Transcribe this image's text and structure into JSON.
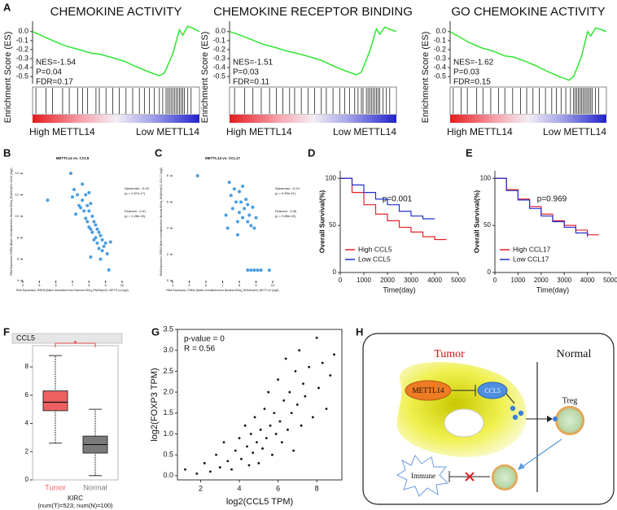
{
  "panel_labels": [
    "A",
    "B",
    "C",
    "D",
    "E",
    "F",
    "G",
    "H"
  ],
  "chart_data": [
    {
      "type": "line",
      "title": "CHEMOKINE ACTIVITY",
      "y_label": "Enrichment Score (ES)",
      "x_labels": [
        "High METTL14",
        "Low METTL14"
      ],
      "color": "#2ee62e",
      "annotations": [
        "NES=-1.54",
        "P=0.04",
        "FDR=0.17"
      ],
      "xlim": [
        0,
        100
      ],
      "ylim": [
        -0.58,
        0.08
      ],
      "yticks": [
        {
          "value": 0,
          "label": "0.0"
        },
        -0.1,
        -0.2,
        -0.3,
        -0.4,
        -0.5
      ],
      "x": [
        0,
        5,
        12,
        20,
        28,
        35,
        40,
        48,
        55,
        62,
        70,
        76,
        79,
        84,
        88,
        90,
        93,
        97,
        100
      ],
      "values": [
        0,
        -0.04,
        -0.1,
        -0.16,
        -0.2,
        -0.24,
        -0.25,
        -0.29,
        -0.33,
        -0.39,
        -0.45,
        -0.49,
        -0.46,
        -0.25,
        0.02,
        -0.04,
        0.06,
        0.03,
        0
      ],
      "hits": [
        2,
        8,
        12,
        18,
        22,
        27,
        30,
        33,
        38,
        40,
        44,
        48,
        52,
        56,
        60,
        64,
        67,
        70,
        73,
        76,
        78,
        80,
        81,
        82,
        83,
        84,
        85,
        86,
        87,
        88,
        89,
        90,
        91,
        93,
        95
      ]
    },
    {
      "type": "line",
      "title": "CHEMOKINE RECEPTOR BINDING",
      "y_label": "Enrichment Score (ES)",
      "x_labels": [
        "High METTL14",
        "Low METTL14"
      ],
      "color": "#2ee62e",
      "annotations": [
        "NES=-1.51",
        "P=0.03",
        "FDR=0.11"
      ],
      "xlim": [
        0,
        100
      ],
      "ylim": [
        -0.58,
        0.08
      ],
      "yticks": [
        {
          "value": 0,
          "label": "0.0"
        },
        -0.1,
        -0.2,
        -0.3,
        -0.4,
        -0.5
      ],
      "x": [
        0,
        5,
        12,
        20,
        28,
        35,
        40,
        48,
        55,
        62,
        70,
        76,
        79,
        84,
        88,
        90,
        93,
        97,
        100
      ],
      "values": [
        0,
        -0.03,
        -0.08,
        -0.14,
        -0.18,
        -0.22,
        -0.24,
        -0.28,
        -0.32,
        -0.38,
        -0.44,
        -0.48,
        -0.45,
        -0.22,
        0.03,
        -0.03,
        0.05,
        0.02,
        0
      ],
      "hits": [
        3,
        9,
        14,
        19,
        24,
        28,
        32,
        36,
        39,
        43,
        47,
        51,
        55,
        58,
        62,
        66,
        69,
        72,
        75,
        77,
        79,
        80,
        82,
        83,
        84,
        85,
        86,
        87,
        88,
        89,
        90,
        92,
        94,
        96
      ]
    },
    {
      "type": "line",
      "title": "GO CHEMOKINE ACTIVITY",
      "y_label": "Enrichment Score (ES)",
      "x_labels": [
        "High METTL14",
        "Low METTL14"
      ],
      "color": "#2ee62e",
      "annotations": [
        "NES=-1.62",
        "P=0.03",
        "FDR=0.15"
      ],
      "xlim": [
        0,
        100
      ],
      "ylim": [
        -0.58,
        0.08
      ],
      "yticks": [
        {
          "value": 0,
          "label": "0.0"
        },
        -0.1,
        -0.2,
        -0.3,
        -0.4,
        -0.5
      ],
      "x": [
        0,
        5,
        12,
        20,
        28,
        35,
        40,
        48,
        55,
        62,
        70,
        76,
        79,
        84,
        88,
        90,
        93,
        97,
        100
      ],
      "values": [
        0,
        -0.05,
        -0.12,
        -0.18,
        -0.22,
        -0.27,
        -0.28,
        -0.33,
        -0.38,
        -0.44,
        -0.5,
        -0.54,
        -0.5,
        -0.28,
        0,
        -0.05,
        0.04,
        0.02,
        0
      ],
      "hits": [
        2,
        7,
        11,
        17,
        21,
        26,
        31,
        35,
        40,
        45,
        49,
        53,
        57,
        61,
        65,
        68,
        71,
        74,
        77,
        79,
        80,
        81,
        82,
        83,
        84,
        85,
        86,
        87,
        88,
        89,
        90,
        91,
        93,
        95
      ]
    },
    {
      "type": "scatter",
      "title": "METTL14 vs. CCL5",
      "color": "#4a9de0",
      "x_label": "RNA Expression, RSEM (Batch normalized from Illumina HiSeq_RNASeqV2): METTL14 (log2)",
      "y_label": "RNA Expression, RSEM (Batch normalized from Illumina HiSeq_RNASeqV2): CCL5 (log2)",
      "annotations": [
        "Spearman: -0.43",
        "(p = 1.67e-17)",
        "Pearson: -0.41",
        "(p = 1.28e-15)"
      ],
      "xlim": [
        4,
        10
      ],
      "xticks": [
        4,
        5,
        6,
        7,
        8,
        9,
        10
      ],
      "ylim": [
        4,
        15
      ],
      "yticks": [
        4,
        6,
        8,
        10,
        12,
        14
      ],
      "x": [
        5.5,
        6.9,
        7.1,
        7.3,
        7.4,
        7.5,
        7.6,
        7.6,
        7.7,
        7.8,
        7.8,
        7.9,
        7.9,
        8.0,
        8.0,
        8.1,
        8.1,
        8.2,
        8.2,
        8.3,
        8.3,
        8.4,
        8.4,
        8.5,
        8.5,
        8.6,
        8.6,
        8.7,
        8.8,
        8.8,
        8.9,
        9.0,
        9.1,
        9.2,
        7.2,
        7.0,
        8.0,
        8.7,
        9.3,
        8.1
      ],
      "values": [
        11.5,
        14,
        12.5,
        12,
        11,
        10.8,
        13,
        11.5,
        10.5,
        12,
        9.8,
        11,
        9.5,
        10.5,
        9,
        11.2,
        8.8,
        10,
        8.5,
        9.5,
        7.8,
        9.2,
        8,
        8.8,
        7.5,
        8.5,
        7,
        8.2,
        7.8,
        6.8,
        7.2,
        7.5,
        6.5,
        5,
        10.2,
        11.8,
        12.2,
        6,
        7.6,
        6.2
      ]
    },
    {
      "type": "scatter",
      "title": "METTL14 vs. CCL17",
      "color": "#4a9de0",
      "x_label": "RNA Expression, RSEM (Batch normalized from Illumina HiSeq_RNASeqV2): METTL14 (log2)",
      "y_label": "RNA Expression, RSEM (Batch normalized from Illumina HiSeq_RNASeqV2): CCL17 (log2)",
      "annotations": [
        "Spearman: -0.24",
        "(p = 6.59e-11)",
        "Pearson: -0.36",
        "(p = 3.85e-10)"
      ],
      "xlim": [
        4,
        10
      ],
      "xticks": [
        4,
        5,
        6,
        7,
        8,
        9,
        10
      ],
      "ylim": [
        0,
        9
      ],
      "yticks": [
        0,
        2,
        4,
        6,
        8
      ],
      "x": [
        5.5,
        7.2,
        7.3,
        7.5,
        7.6,
        7.7,
        7.8,
        7.9,
        8.0,
        8.0,
        8.1,
        8.2,
        8.2,
        8.3,
        8.4,
        8.5,
        8.5,
        8.6,
        8.7,
        8.8,
        8.9,
        9.0,
        7.4,
        7.9,
        8.5,
        8.7,
        8.9,
        9.1,
        9.3,
        9.8
      ],
      "values": [
        8,
        5,
        4,
        6.5,
        5.5,
        7,
        6,
        4.5,
        6.8,
        5.2,
        6,
        4.8,
        7.2,
        5.5,
        6.2,
        4.5,
        5.8,
        5,
        4.2,
        5.6,
        4,
        4.8,
        7.5,
        3.5,
        0.8,
        0.8,
        0.8,
        0.8,
        0.8,
        0.8
      ]
    },
    {
      "type": "step",
      "x_label": "Time(day)",
      "y_label": "Overall Survival(%)",
      "annotations": [
        "p=0.001"
      ],
      "xlim": [
        0,
        5000
      ],
      "xticks": [
        0,
        1000,
        2000,
        3000,
        4000,
        5000
      ],
      "ylim": [
        0,
        108
      ],
      "yticks": [
        0,
        50,
        100
      ],
      "series": [
        {
          "name": "High CCL5",
          "color": "#e8202a",
          "x": [
            0,
            500,
            1000,
            1500,
            2000,
            2500,
            3000,
            3500,
            4000,
            4500
          ],
          "values": [
            100,
            85,
            72,
            62,
            55,
            48,
            43,
            38,
            35,
            35
          ]
        },
        {
          "name": "Low CCL5",
          "color": "#2030d0",
          "x": [
            0,
            500,
            1000,
            1500,
            2000,
            2500,
            3000,
            3500,
            4000
          ],
          "values": [
            100,
            93,
            85,
            78,
            72,
            65,
            60,
            57,
            57
          ]
        }
      ]
    },
    {
      "type": "step",
      "x_label": "Time(day)",
      "y_label": "Overall Survival(%)",
      "annotations": [
        "p=0.969"
      ],
      "xlim": [
        0,
        5000
      ],
      "xticks": [
        0,
        1000,
        2000,
        3000,
        4000,
        5000
      ],
      "ylim": [
        0,
        108
      ],
      "yticks": [
        0,
        50,
        100
      ],
      "series": [
        {
          "name": "High CCL17",
          "color": "#e8202a",
          "x": [
            0,
            500,
            1000,
            1500,
            2000,
            2500,
            3000,
            3500,
            4000,
            4500
          ],
          "values": [
            100,
            88,
            78,
            70,
            62,
            55,
            50,
            45,
            40,
            40
          ]
        },
        {
          "name": "Low CCL17",
          "color": "#2030d0",
          "x": [
            0,
            500,
            1000,
            1500,
            2000,
            2500,
            3000,
            3500,
            4000
          ],
          "values": [
            100,
            87,
            77,
            68,
            60,
            54,
            48,
            42,
            38
          ]
        }
      ]
    },
    {
      "type": "box",
      "title": "CCL5",
      "x_label": "KIRC",
      "subtitle": "(num(T)=523; num(N)=100)",
      "annotations": [
        "*"
      ],
      "ylim": [
        0,
        9.5
      ],
      "yticks": [
        0,
        2,
        4,
        6,
        8
      ],
      "boxes": [
        {
          "name": "Tumor",
          "color": "#f06060",
          "min": 2.6,
          "q1": 4.9,
          "median": 5.5,
          "q3": 6.3,
          "max": 8.8
        },
        {
          "name": "Normal",
          "color": "#7a7a7a",
          "min": 0.3,
          "q1": 1.9,
          "median": 2.5,
          "q3": 3.1,
          "max": 5.0
        }
      ]
    },
    {
      "type": "scatter",
      "x_label": "log2(CCL5 TPM)",
      "y_label": "log2(FOXP3 TPM)",
      "color": "#111111",
      "annotations": [
        "p-value = 0",
        "R = 0.56"
      ],
      "xlim": [
        0.8,
        9.3
      ],
      "xticks": [
        2,
        4,
        6,
        8
      ],
      "ylim": [
        -0.1,
        3.5
      ],
      "yticks": [
        {
          "value": 0,
          "label": "0.0"
        },
        0.5,
        {
          "value": 1,
          "label": "1.0"
        },
        1.5,
        {
          "value": 2,
          "label": "2.0"
        },
        2.5,
        {
          "value": 3,
          "label": "3.0"
        },
        3.5
      ],
      "x": [
        1.2,
        1.8,
        2.2,
        2.5,
        2.8,
        3.0,
        3.2,
        3.4,
        3.6,
        3.8,
        4.0,
        4.1,
        4.3,
        4.4,
        4.5,
        4.6,
        4.7,
        4.8,
        4.9,
        5.0,
        5.1,
        5.2,
        5.3,
        5.4,
        5.5,
        5.6,
        5.7,
        5.8,
        5.9,
        6.0,
        6.1,
        6.2,
        6.3,
        6.4,
        6.5,
        6.6,
        6.7,
        6.8,
        6.9,
        7.0,
        7.1,
        7.2,
        7.3,
        7.4,
        7.6,
        7.8,
        8.0,
        8.1,
        8.3,
        8.5,
        8.7,
        8.9
      ],
      "values": [
        0.15,
        0.05,
        0.3,
        0.1,
        0.5,
        0.2,
        0.8,
        0.35,
        0.15,
        0.6,
        0.9,
        0.4,
        1.2,
        0.7,
        0.25,
        1.0,
        0.55,
        1.4,
        0.8,
        0.3,
        1.1,
        0.65,
        1.6,
        0.9,
        2.0,
        1.2,
        0.5,
        1.5,
        1.0,
        2.3,
        1.3,
        0.8,
        1.8,
        2.8,
        1.1,
        2.0,
        1.5,
        0.6,
        2.5,
        1.7,
        3.0,
        1.2,
        2.2,
        1.9,
        2.6,
        1.4,
        3.3,
        2.1,
        2.7,
        1.6,
        2.4,
        2.9
      ]
    }
  ],
  "diagram": {
    "tumor": "Tumor",
    "normal": "Normal",
    "mettl14": "METTL14",
    "ccl5": "CCL5",
    "treg": "Treg",
    "immune": "Immune"
  }
}
